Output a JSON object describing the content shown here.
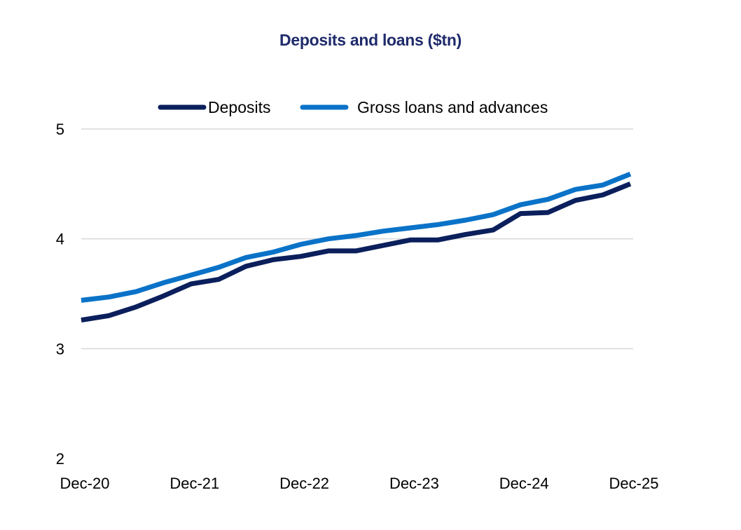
{
  "chart_data": {
    "type": "line",
    "title": "Deposits and loans ($tn)",
    "xlabel": "",
    "ylabel": "",
    "ylim": [
      2,
      5
    ],
    "yticks": [
      2,
      3,
      4,
      5
    ],
    "x_tick_labels": [
      "Dec-20",
      "Dec-21",
      "Dec-22",
      "Dec-23",
      "Dec-24",
      "Dec-25"
    ],
    "x": [
      "Dec-20",
      "Mar-21",
      "Jun-21",
      "Sep-21",
      "Dec-21",
      "Mar-22",
      "Jun-22",
      "Sep-22",
      "Dec-22",
      "Mar-23",
      "Jun-23",
      "Sep-23",
      "Dec-23",
      "Mar-24",
      "Jun-24",
      "Sep-24",
      "Dec-24",
      "Mar-25",
      "Jun-25",
      "Sep-25",
      "Dec-25"
    ],
    "grid": "horizontal",
    "legend_position": "top",
    "series": [
      {
        "name": "Deposits",
        "color": "#0b1f5c",
        "values": [
          3.26,
          3.3,
          3.38,
          3.48,
          3.59,
          3.63,
          3.75,
          3.81,
          3.84,
          3.89,
          3.89,
          3.94,
          3.99,
          3.99,
          4.04,
          4.08,
          4.23,
          4.24,
          4.35,
          4.4,
          4.5
        ]
      },
      {
        "name": "Gross loans and advances",
        "color": "#0a73c8",
        "values": [
          3.44,
          3.47,
          3.52,
          3.6,
          3.67,
          3.74,
          3.83,
          3.88,
          3.95,
          4.0,
          4.03,
          4.07,
          4.1,
          4.13,
          4.17,
          4.22,
          4.31,
          4.36,
          4.45,
          4.49,
          4.59
        ]
      }
    ]
  }
}
